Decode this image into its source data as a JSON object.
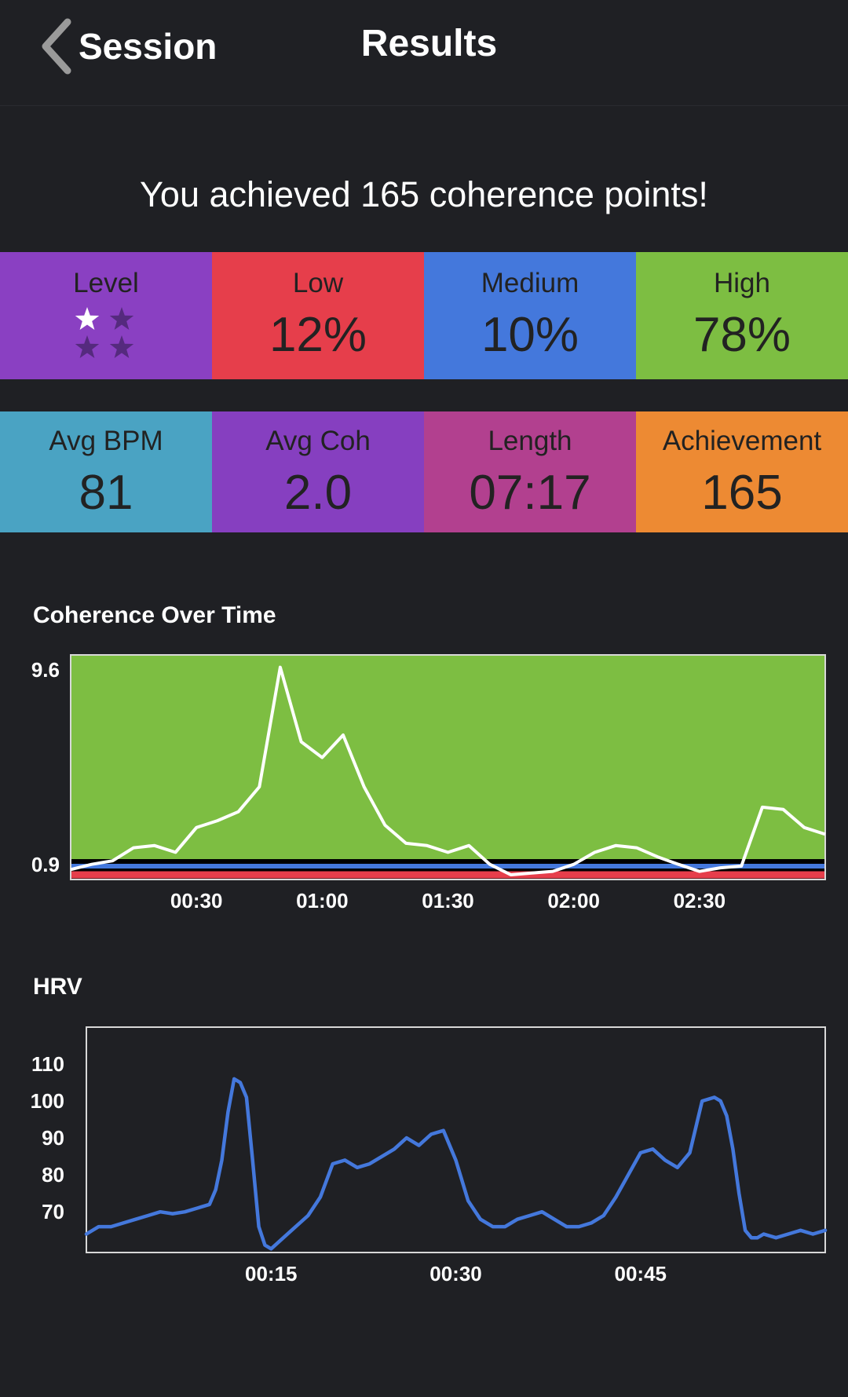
{
  "header": {
    "back_label": "Session",
    "title": "Results"
  },
  "headline": "You achieved 165 coherence points!",
  "level": {
    "label": "Level",
    "stars_total": 4,
    "stars_filled": 1
  },
  "stats_row1": [
    {
      "label": "Low",
      "value": "12%",
      "color": "#e63e4b"
    },
    {
      "label": "Medium",
      "value": "10%",
      "color": "#4478dc"
    },
    {
      "label": "High",
      "value": "78%",
      "color": "#7dbe42"
    }
  ],
  "stats_row2": [
    {
      "label": "Avg BPM",
      "value": "81",
      "color": "#4aa3c3"
    },
    {
      "label": "Avg Coh",
      "value": "2.0",
      "color": "#863fc0"
    },
    {
      "label": "Length",
      "value": "07:17",
      "color": "#b2408f"
    },
    {
      "label": "Achievement",
      "value": "165",
      "color": "#ed8a33"
    }
  ],
  "colors": {
    "level_tile": "#8a40c2",
    "background": "#1f2024",
    "coherence_high_zone": "#7dbe42",
    "coherence_medium_line": "#4478dc",
    "coherence_low_line": "#e63e4b",
    "hrv_line": "#4478dc"
  },
  "coherence_chart": {
    "section_title": "Coherence Over Time",
    "chart_data": {
      "type": "line",
      "title": "Coherence Over Time",
      "xlabel": "",
      "ylabel": "",
      "x_ticks": [
        "00:30",
        "01:00",
        "01:30",
        "02:00",
        "02:30"
      ],
      "x_tick_values": [
        30,
        60,
        90,
        120,
        150
      ],
      "y_ticks": [
        "0.9",
        "9.6"
      ],
      "y_tick_values": [
        0.9,
        9.6
      ],
      "xlim": [
        0,
        180
      ],
      "ylim": [
        0.0,
        9.6
      ],
      "zones": [
        {
          "name": "low",
          "from": 0.0,
          "to": 0.3
        },
        {
          "name": "medium",
          "from": 0.3,
          "to": 0.9
        },
        {
          "name": "high",
          "from": 0.9,
          "to": 9.6
        }
      ],
      "series": [
        {
          "x": [
            0,
            5,
            10,
            15,
            20,
            25,
            30,
            35,
            40,
            45,
            50,
            55,
            60,
            65,
            70,
            75,
            80,
            85,
            90,
            95,
            100,
            105,
            110,
            115,
            120,
            125,
            130,
            135,
            140,
            145,
            150,
            155,
            160,
            165,
            170,
            175,
            180
          ],
          "values": [
            0.3,
            0.6,
            0.8,
            1.4,
            1.5,
            1.2,
            2.3,
            2.6,
            3.0,
            4.1,
            9.4,
            6.1,
            5.4,
            6.4,
            4.1,
            2.4,
            1.6,
            1.5,
            1.2,
            1.5,
            0.6,
            0.0,
            0.1,
            0.2,
            0.6,
            1.2,
            1.5,
            1.4,
            1.0,
            0.6,
            0.2,
            0.4,
            0.5,
            3.2,
            3.1,
            2.3,
            2.0
          ]
        }
      ]
    }
  },
  "hrv_chart": {
    "section_title": "HRV",
    "chart_data": {
      "type": "line",
      "title": "HRV",
      "xlabel": "",
      "ylabel": "",
      "x_ticks": [
        "00:15",
        "00:30",
        "00:45"
      ],
      "x_tick_values": [
        15,
        30,
        45
      ],
      "y_ticks": [
        "70",
        "80",
        "90",
        "100",
        "110"
      ],
      "y_tick_values": [
        70,
        80,
        90,
        100,
        110
      ],
      "xlim": [
        0,
        60
      ],
      "ylim": [
        59,
        120
      ],
      "series": [
        {
          "x": [
            0,
            1,
            2,
            3,
            4,
            5,
            6,
            7,
            8,
            9,
            10,
            10.5,
            11,
            11.5,
            12,
            12.5,
            13,
            13.5,
            14,
            14.5,
            15,
            16,
            17,
            18,
            19,
            20,
            21,
            22,
            23,
            24,
            25,
            26,
            27,
            28,
            29,
            30,
            31,
            32,
            33,
            34,
            35,
            36,
            37,
            38,
            39,
            40,
            41,
            42,
            43,
            44,
            45,
            46,
            47,
            48,
            49,
            50,
            51,
            51.5,
            52,
            52.5,
            53,
            53.5,
            54,
            54.5,
            55,
            56,
            57,
            58,
            59,
            60
          ],
          "values": [
            64,
            66,
            66,
            67,
            68,
            69,
            70,
            69.5,
            70,
            71,
            72,
            76,
            84,
            97,
            106,
            105,
            101,
            84,
            66,
            61,
            60,
            63,
            66,
            69,
            74,
            83,
            84,
            82,
            83,
            85,
            87,
            90,
            88,
            91,
            92,
            84,
            73,
            68,
            66,
            66,
            68,
            69,
            70,
            68,
            66,
            66,
            67,
            69,
            74,
            80,
            86,
            87,
            84,
            82,
            86,
            100,
            101,
            100,
            96,
            87,
            75,
            65,
            63,
            63,
            64,
            63,
            64,
            65,
            64,
            65
          ]
        }
      ]
    }
  }
}
